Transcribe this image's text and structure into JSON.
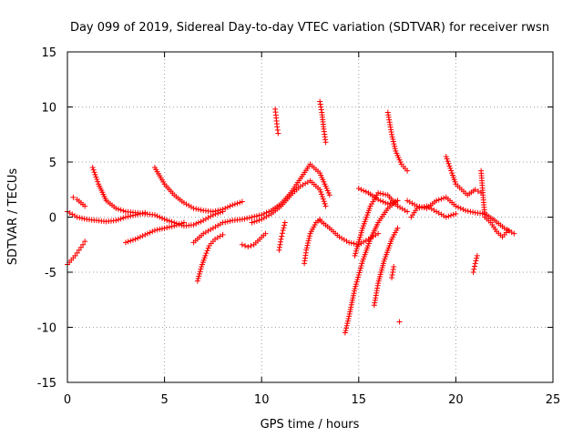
{
  "chart_data": {
    "type": "scatter",
    "title": "Day 099 of 2019, Sidereal Day-to-day VTEC variation (SDTVAR) for receiver rwsn",
    "xlabel": "GPS time / hours",
    "ylabel": "SDTVAR / TECUs",
    "xlim": [
      0,
      25
    ],
    "ylim": [
      -15,
      15
    ],
    "xticks": [
      "0",
      "5",
      "10",
      "15",
      "20",
      "25"
    ],
    "yticks": [
      "15",
      "10",
      "5",
      "0",
      "-5",
      "-10",
      "-15"
    ],
    "grid": true,
    "marker": "+",
    "color": "#ff0000",
    "series": [
      {
        "name": "arc1",
        "x": [
          0.0,
          0.5,
          1.0,
          1.5,
          2.0,
          2.5,
          3.0,
          3.5,
          4.0
        ],
        "y": [
          0.5,
          0.0,
          -0.2,
          -0.3,
          -0.4,
          -0.3,
          0.0,
          0.2,
          0.4
        ]
      },
      {
        "name": "arc2",
        "x": [
          0.0,
          0.2,
          0.4,
          0.6,
          0.8,
          0.9
        ],
        "y": [
          -4.3,
          -3.9,
          -3.5,
          -3.0,
          -2.5,
          -2.2
        ]
      },
      {
        "name": "arc3",
        "x": [
          0.3,
          0.5,
          0.7,
          0.9
        ],
        "y": [
          1.8,
          1.6,
          1.3,
          1.0
        ]
      },
      {
        "name": "arc4",
        "x": [
          1.3,
          1.6,
          2.0,
          2.5,
          3.0,
          3.5,
          4.0,
          4.5,
          5.0,
          5.5,
          6.0,
          6.5,
          7.0,
          7.5,
          8.0
        ],
        "y": [
          4.5,
          3.0,
          1.5,
          0.8,
          0.5,
          0.4,
          0.3,
          0.2,
          -0.2,
          -0.5,
          -0.8,
          -0.7,
          -0.3,
          0.2,
          0.5
        ]
      },
      {
        "name": "arc5",
        "x": [
          3.0,
          3.5,
          4.0,
          4.5,
          5.0,
          5.5,
          6.0
        ],
        "y": [
          -2.3,
          -2.0,
          -1.6,
          -1.2,
          -1.0,
          -0.8,
          -0.5
        ]
      },
      {
        "name": "arc6",
        "x": [
          4.5,
          5.0,
          5.5,
          6.0,
          6.5,
          7.0,
          7.5,
          8.0,
          8.5,
          9.0
        ],
        "y": [
          4.5,
          3.0,
          2.0,
          1.3,
          0.8,
          0.6,
          0.5,
          0.7,
          1.1,
          1.4
        ]
      },
      {
        "name": "arc7",
        "x": [
          6.5,
          7.0,
          7.5,
          8.0,
          8.5,
          9.0,
          9.5,
          10.0,
          10.5,
          11.0,
          11.5,
          12.0,
          12.5,
          13.0,
          13.5
        ],
        "y": [
          -2.3,
          -1.5,
          -1.0,
          -0.5,
          -0.3,
          -0.2,
          0.0,
          0.2,
          0.6,
          1.2,
          2.2,
          3.5,
          4.8,
          4.0,
          2.0
        ]
      },
      {
        "name": "arc8",
        "x": [
          6.7,
          6.9,
          7.1,
          7.3,
          7.6,
          8.0
        ],
        "y": [
          -5.8,
          -4.5,
          -3.5,
          -2.6,
          -2.0,
          -1.6
        ]
      },
      {
        "name": "arc9",
        "x": [
          9.0,
          9.3,
          9.6,
          9.9,
          10.2
        ],
        "y": [
          -2.5,
          -2.7,
          -2.5,
          -2.0,
          -1.5
        ]
      },
      {
        "name": "arc10",
        "x": [
          9.5,
          10.0,
          10.5,
          11.0,
          11.5,
          12.0,
          12.5,
          13.0,
          13.3
        ],
        "y": [
          -0.5,
          -0.2,
          0.3,
          1.0,
          2.0,
          2.8,
          3.3,
          2.5,
          1.0
        ]
      },
      {
        "name": "arc11",
        "x": [
          10.7,
          10.75,
          10.8,
          10.85
        ],
        "y": [
          9.8,
          9.0,
          8.2,
          7.6
        ]
      },
      {
        "name": "arc12",
        "x": [
          10.9,
          11.0,
          11.1,
          11.2
        ],
        "y": [
          -3.0,
          -2.0,
          -1.2,
          -0.5
        ]
      },
      {
        "name": "arc13",
        "x": [
          12.2,
          12.3,
          12.5,
          12.8,
          13.0
        ],
        "y": [
          -4.2,
          -3.0,
          -1.5,
          -0.5,
          -0.2
        ]
      },
      {
        "name": "arc14",
        "x": [
          13.0,
          13.1,
          13.2,
          13.3
        ],
        "y": [
          10.5,
          9.5,
          8.0,
          6.8
        ]
      },
      {
        "name": "arc15",
        "x": [
          13.0,
          13.5,
          14.0,
          14.5,
          15.0,
          15.5,
          16.0
        ],
        "y": [
          -0.3,
          -1.0,
          -1.8,
          -2.3,
          -2.5,
          -2.0,
          -1.5
        ]
      },
      {
        "name": "arc16",
        "x": [
          14.3,
          14.5,
          14.8,
          15.2,
          15.6,
          16.0,
          16.5,
          17.0
        ],
        "y": [
          -10.5,
          -9.0,
          -6.5,
          -4.0,
          -2.0,
          -0.5,
          0.8,
          1.5
        ]
      },
      {
        "name": "arc17",
        "x": [
          14.8,
          15.2,
          15.6,
          16.0,
          16.5,
          17.0,
          17.5
        ],
        "y": [
          -3.5,
          -1.0,
          1.0,
          2.2,
          2.0,
          1.0,
          0.5
        ]
      },
      {
        "name": "arc18",
        "x": [
          15.0,
          15.5,
          16.0,
          16.5,
          17.0
        ],
        "y": [
          2.6,
          2.2,
          1.6,
          1.2,
          1.5
        ]
      },
      {
        "name": "arc19",
        "x": [
          15.8,
          16.0,
          16.3,
          16.7,
          17.0
        ],
        "y": [
          -8.0,
          -6.0,
          -4.0,
          -2.0,
          -1.0
        ]
      },
      {
        "name": "arc20",
        "x": [
          16.5,
          16.7,
          16.9,
          17.2,
          17.5
        ],
        "y": [
          9.5,
          7.5,
          6.0,
          4.8,
          4.2
        ]
      },
      {
        "name": "arc21",
        "x": [
          16.7,
          16.8
        ],
        "y": [
          -5.5,
          -4.5
        ]
      },
      {
        "name": "arc22",
        "x": [
          17.1
        ],
        "y": [
          -9.5
        ]
      },
      {
        "name": "arc23",
        "x": [
          17.5,
          18.0,
          18.5,
          19.0,
          19.5,
          20.0,
          20.5,
          21.0,
          21.5,
          22.0,
          22.5,
          23.0
        ],
        "y": [
          1.5,
          1.0,
          0.8,
          1.5,
          1.8,
          1.0,
          0.6,
          0.4,
          0.3,
          -0.3,
          -1.0,
          -1.5
        ]
      },
      {
        "name": "arc24",
        "x": [
          19.5,
          19.8,
          20.0,
          20.3,
          20.6,
          21.0,
          21.3
        ],
        "y": [
          5.5,
          4.0,
          3.0,
          2.5,
          2.0,
          2.5,
          2.2
        ]
      },
      {
        "name": "arc25",
        "x": [
          17.7,
          18.0,
          18.5,
          19.0,
          19.5,
          20.0
        ],
        "y": [
          0.0,
          0.8,
          1.0,
          0.5,
          0.0,
          0.3
        ]
      },
      {
        "name": "arc26",
        "x": [
          20.9,
          21.0,
          21.1
        ],
        "y": [
          -5.0,
          -4.2,
          -3.5
        ]
      },
      {
        "name": "arc27",
        "x": [
          21.3,
          21.4,
          21.5
        ],
        "y": [
          4.2,
          2.0,
          0.0
        ]
      },
      {
        "name": "arc28",
        "x": [
          21.5,
          21.8,
          22.1,
          22.4,
          22.7
        ],
        "y": [
          0.0,
          -0.5,
          -1.3,
          -1.8,
          -1.2
        ]
      }
    ]
  }
}
